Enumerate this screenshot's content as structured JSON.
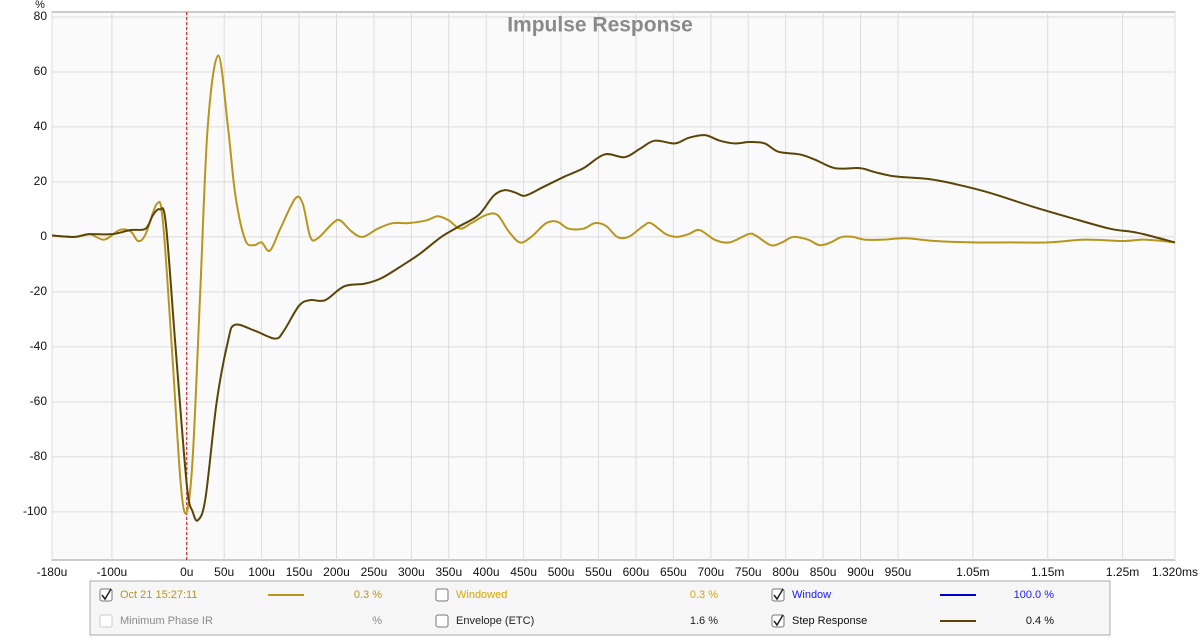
{
  "chart_data": {
    "type": "line",
    "title": "Impulse Response",
    "y_label": "%",
    "xlim": [
      -180,
      1320
    ],
    "ylim": [
      -117.5,
      81.8
    ],
    "xticks": [
      {
        "value": -180,
        "label": "-180u"
      },
      {
        "value": -100,
        "label": "-100u"
      },
      {
        "value": 0,
        "label": "0u"
      },
      {
        "value": 50,
        "label": "50u"
      },
      {
        "value": 100,
        "label": "100u"
      },
      {
        "value": 150,
        "label": "150u"
      },
      {
        "value": 200,
        "label": "200u"
      },
      {
        "value": 250,
        "label": "250u"
      },
      {
        "value": 300,
        "label": "300u"
      },
      {
        "value": 350,
        "label": "350u"
      },
      {
        "value": 400,
        "label": "400u"
      },
      {
        "value": 450,
        "label": "450u"
      },
      {
        "value": 500,
        "label": "500u"
      },
      {
        "value": 550,
        "label": "550u"
      },
      {
        "value": 600,
        "label": "600u"
      },
      {
        "value": 650,
        "label": "650u"
      },
      {
        "value": 700,
        "label": "700u"
      },
      {
        "value": 750,
        "label": "750u"
      },
      {
        "value": 800,
        "label": "800u"
      },
      {
        "value": 850,
        "label": "850u"
      },
      {
        "value": 900,
        "label": "900u"
      },
      {
        "value": 950,
        "label": "950u"
      },
      {
        "value": 1050,
        "label": "1.05m"
      },
      {
        "value": 1150,
        "label": "1.15m"
      },
      {
        "value": 1250,
        "label": "1.25m"
      },
      {
        "value": 1320,
        "label": "1.320ms"
      }
    ],
    "yticks": [
      80,
      60,
      40,
      20,
      0,
      -20,
      -40,
      -60,
      -80,
      -100
    ],
    "grid": true,
    "marker_x": 0,
    "marker_color": "#cc0000",
    "series": [
      {
        "name": "Oct 21 15:27:11",
        "color": "#b8961e",
        "checked": true,
        "legend_value": "0.3 %",
        "x": [
          -180,
          -150,
          -130,
          -110,
          -90,
          -75,
          -65,
          -55,
          -40,
          -32,
          -20,
          -8,
          0,
          8,
          18,
          28,
          42,
          55,
          65,
          78,
          90,
          100,
          111,
          125,
          145,
          155,
          165,
          175,
          195,
          205,
          220,
          235,
          255,
          275,
          295,
          320,
          335,
          350,
          365,
          380,
          400,
          415,
          430,
          445,
          460,
          480,
          495,
          510,
          530,
          545,
          560,
          575,
          590,
          610,
          620,
          640,
          655,
          670,
          685,
          705,
          725,
          750,
          760,
          780,
          795,
          810,
          830,
          845,
          860,
          875,
          890,
          905,
          930,
          960,
          1000,
          1050,
          1100,
          1150,
          1200,
          1250,
          1280,
          1320
        ],
        "values": [
          0.5,
          0,
          1,
          -1,
          2.5,
          2,
          -1.5,
          1,
          12,
          6,
          -40,
          -90,
          -100,
          -80,
          -20,
          40,
          66,
          40,
          15,
          -1,
          -3,
          -2,
          -5,
          3,
          14,
          12,
          0,
          -0.5,
          5,
          6,
          2,
          0,
          3,
          5,
          5,
          6,
          7.5,
          6,
          3,
          5,
          8,
          8,
          2,
          -2,
          0,
          5,
          5.5,
          3,
          3,
          5,
          4,
          0,
          0,
          4,
          5,
          1,
          0,
          1,
          2.5,
          -1,
          -2,
          1,
          0.5,
          -3,
          -2,
          0,
          -1,
          -3,
          -2,
          0,
          0,
          -1,
          -1,
          -0.5,
          -1.5,
          -2,
          -2,
          -2,
          -1,
          -1.5,
          -1,
          -2
        ]
      },
      {
        "name": "Step Response",
        "color": "#5a4506",
        "checked": true,
        "legend_value": "0.4 %",
        "x": [
          -180,
          -150,
          -130,
          -100,
          -75,
          -55,
          -45,
          -36,
          -28,
          -15,
          0,
          8,
          15,
          25,
          40,
          55,
          64,
          90,
          118,
          130,
          150,
          165,
          185,
          210,
          238,
          260,
          290,
          312,
          340,
          365,
          390,
          410,
          425,
          440,
          452,
          475,
          505,
          530,
          558,
          585,
          605,
          625,
          652,
          670,
          692,
          712,
          732,
          752,
          772,
          790,
          819,
          840,
          866,
          899,
          920,
          946,
          992,
          1030,
          1073,
          1130,
          1180,
          1233,
          1270,
          1320
        ],
        "values": [
          0.5,
          0,
          1,
          1,
          2.5,
          3,
          8,
          10,
          5,
          -40,
          -90,
          -100,
          -103,
          -95,
          -60,
          -38,
          -32,
          -34,
          -37,
          -34,
          -25,
          -23,
          -23,
          -18,
          -17,
          -15,
          -10,
          -6,
          0,
          4,
          8,
          15,
          17,
          16,
          15,
          18,
          22,
          25,
          30,
          29,
          32,
          35,
          34,
          36,
          37,
          35,
          34,
          34.5,
          34,
          31,
          30,
          28,
          25,
          25,
          23.5,
          22,
          21,
          19,
          16,
          11,
          7,
          3,
          1.5,
          -2
        ]
      }
    ],
    "legend_other": [
      {
        "label": "Windowed",
        "checked": false,
        "text_color": "#d4aa00",
        "legend_value": "0.3 %"
      },
      {
        "label": "Window",
        "checked": true,
        "text_color": "#1a1aff",
        "line_color": "#0000cc",
        "legend_value": "100.0 %"
      },
      {
        "label": "Minimum Phase IR",
        "checked": false,
        "text_color": "#8a8a8a",
        "legend_value": "%"
      },
      {
        "label": "Envelope (ETC)",
        "checked": false,
        "text_color": "#222222",
        "legend_value": "1.6 %"
      }
    ]
  }
}
